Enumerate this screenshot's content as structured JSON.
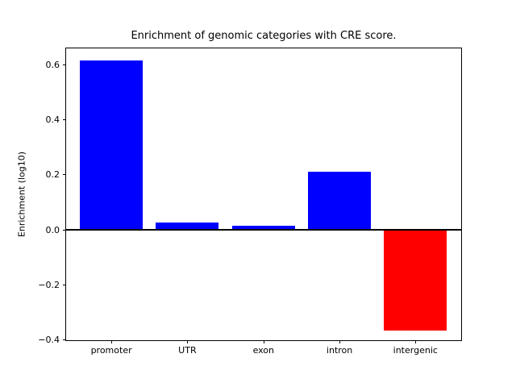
{
  "figure": {
    "background": "#ffffff"
  },
  "chart_data": {
    "type": "bar",
    "title": "Enrichment of genomic categories with CRE score.",
    "xlabel": "",
    "ylabel": "Enrichment (log10)",
    "categories": [
      "promoter",
      "UTR",
      "exon",
      "intron",
      "intergenic"
    ],
    "values": [
      0.615,
      0.027,
      0.015,
      0.211,
      -0.366
    ],
    "bar_colors": [
      "#0000ff",
      "#0000ff",
      "#0000ff",
      "#0000ff",
      "#ff0000"
    ],
    "positive_color": "#0000ff",
    "negative_color": "#ff0000",
    "yticks": {
      "values": [
        0.6,
        0.4,
        0.2,
        0.0,
        -0.2,
        -0.4
      ],
      "labels": [
        "0.6",
        "0.4",
        "0.2",
        "0.0",
        "−0.2",
        "−0.4"
      ]
    },
    "ylim": [
      -0.407,
      0.658
    ],
    "grid": false,
    "legend": null,
    "baseline": {
      "y": 0,
      "color": "#000000",
      "linewidth": 2
    }
  }
}
